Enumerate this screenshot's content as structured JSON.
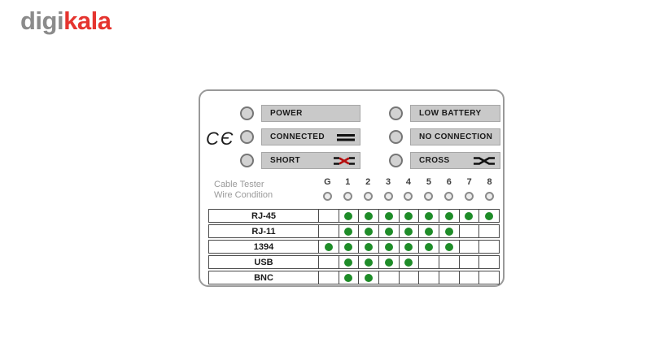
{
  "logo": {
    "gray_text": "digi",
    "red_text": "kala",
    "gray_color": "#8b8b8b",
    "red_color": "#e5342f"
  },
  "panel": {
    "ce_mark": "CЄ",
    "indicators": {
      "left": [
        {
          "label": "POWER",
          "symbol": "none"
        },
        {
          "label": "CONNECTED",
          "symbol": "parallel-lines-icon"
        },
        {
          "label": "SHORT",
          "symbol": "crossed-wires-red-icon"
        }
      ],
      "right": [
        {
          "label": "LOW BATTERY",
          "symbol": "none"
        },
        {
          "label": "NO CONNECTION",
          "symbol": "none"
        },
        {
          "label": "CROSS",
          "symbol": "crossed-wires-black-icon"
        }
      ]
    },
    "table": {
      "title_line1": "Cable Tester",
      "title_line2": "Wire Condition",
      "columns": [
        "G",
        "1",
        "2",
        "3",
        "4",
        "5",
        "6",
        "7",
        "8"
      ],
      "rows": [
        {
          "label": "RJ-45",
          "dots": [
            0,
            1,
            1,
            1,
            1,
            1,
            1,
            1,
            1
          ]
        },
        {
          "label": "RJ-11",
          "dots": [
            0,
            1,
            1,
            1,
            1,
            1,
            1,
            0,
            0
          ]
        },
        {
          "label": "1394",
          "dots": [
            1,
            1,
            1,
            1,
            1,
            1,
            1,
            0,
            0
          ]
        },
        {
          "label": "USB",
          "dots": [
            0,
            1,
            1,
            1,
            1,
            0,
            0,
            0,
            0
          ]
        },
        {
          "label": "BNC",
          "dots": [
            0,
            1,
            1,
            0,
            0,
            0,
            0,
            0,
            0
          ]
        }
      ]
    },
    "colors": {
      "led_on_green": "#1e8c28",
      "short_x_red": "#b50d0d",
      "label_box_gray": "#c9c9c9",
      "panel_border_gray": "#999999"
    }
  }
}
